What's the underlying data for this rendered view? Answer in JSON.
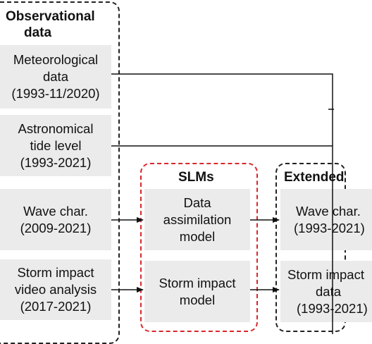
{
  "groups": {
    "observational": {
      "title_line1": "Observational",
      "title_line2": "data"
    },
    "slms": {
      "title": "SLMs"
    },
    "extended": {
      "title": "Extended"
    }
  },
  "observational_boxes": [
    {
      "line1": "Meteorological",
      "line2": "data",
      "line3": "(1993-11/2020)"
    },
    {
      "line1": "Astronomical",
      "line2": "tide level",
      "line3": "(1993-2021)"
    },
    {
      "line1": "Wave char.",
      "line2": "(2009-2021)"
    },
    {
      "line1": "Storm impact",
      "line2": "video analysis",
      "line3": "(2017-2021)"
    }
  ],
  "slm_boxes": [
    {
      "line1": "Data",
      "line2": "assimilation",
      "line3": "model"
    },
    {
      "line1": "Storm impact",
      "line2": "model"
    }
  ],
  "extended_boxes": [
    {
      "line1": "Wave char.",
      "line2": "(1993-2021)"
    },
    {
      "line1": "Storm impact",
      "line2": "data",
      "line3": "(1993-2021)"
    }
  ],
  "colors": {
    "slm_border": "#d9262c",
    "box_fill": "#ebebeb",
    "line": "#111111"
  }
}
